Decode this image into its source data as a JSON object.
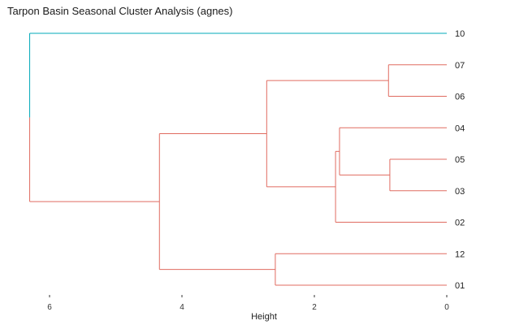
{
  "chart_data": {
    "type": "dendrogram",
    "title": "Tarpon Basin Seasonal Cluster Analysis (agnes)",
    "xlabel": "Height",
    "xlim": [
      6.3,
      0
    ],
    "xticks": [
      6,
      4,
      2,
      0
    ],
    "leaves": [
      "10",
      "07",
      "06",
      "04",
      "05",
      "03",
      "02",
      "12",
      "01"
    ],
    "merges": [
      {
        "left": "07",
        "right": "06",
        "height": 0.88
      },
      {
        "left": "05",
        "right": "03",
        "height": 0.86
      },
      {
        "left": "04",
        "right": [
          "05",
          "03"
        ],
        "height": 1.62
      },
      {
        "left": [
          "04",
          "05",
          "03"
        ],
        "right": "02",
        "height": 1.68
      },
      {
        "left": [
          "07",
          "06"
        ],
        "right": [
          "04",
          "05",
          "03",
          "02"
        ],
        "height": 2.72
      },
      {
        "left": "12",
        "right": "01",
        "height": 2.59
      },
      {
        "left": [
          "07",
          "06",
          "04",
          "05",
          "03",
          "02"
        ],
        "right": [
          "12",
          "01"
        ],
        "height": 4.34
      },
      {
        "left": "10",
        "right": [
          "07",
          "06",
          "04",
          "05",
          "03",
          "02",
          "12",
          "01"
        ],
        "height": 6.3
      }
    ],
    "colors": {
      "cluster_1": "#00a9b8",
      "cluster_2": "#e06b60"
    },
    "grid": false
  }
}
